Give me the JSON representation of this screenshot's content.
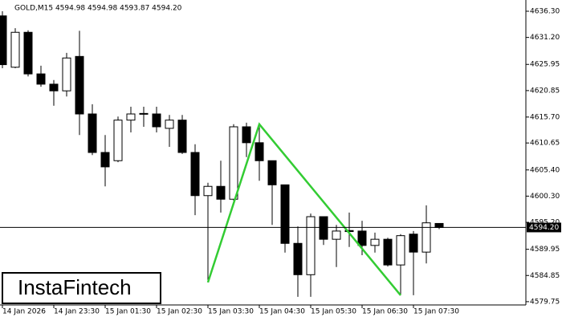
{
  "chart_data": {
    "type": "candlestick",
    "title": "GOLD,M15  4594.98 4594.98 4593.87 4594.20",
    "watermark": "InstaFintech",
    "categories": [
      "14 Jan 2026",
      null,
      null,
      null,
      "14 Jan 23:30",
      null,
      null,
      null,
      "15 Jan 01:30",
      null,
      null,
      null,
      "15 Jan 02:30",
      null,
      null,
      null,
      "15 Jan 03:30",
      null,
      null,
      null,
      "15 Jan 04:30",
      null,
      null,
      null,
      "15 Jan 05:30",
      null,
      null,
      null,
      "15 Jan 06:30",
      null,
      null,
      null,
      "15 Jan 07:30",
      null,
      null
    ],
    "open": [
      4635.4,
      4625.4,
      4632.2,
      4624.1,
      4622.1,
      4620.8,
      4627.5,
      4616.3,
      4608.8,
      4607.2,
      4615.1,
      4616.3,
      4616.3,
      4613.5,
      4615.1,
      4608.8,
      4600.4,
      4602.2,
      4599.7,
      4613.8,
      4610.7,
      4607.2,
      4602.5,
      4591.1,
      4585.0,
      4596.3,
      4591.9,
      4593.6,
      4593.5,
      4590.7,
      4591.9,
      4586.9,
      4592.9,
      4589.4,
      4594.98
    ],
    "high": [
      4636.3,
      4633.0,
      4632.6,
      4625.7,
      4622.9,
      4628.2,
      4632.5,
      4618.2,
      4612.2,
      4615.8,
      4617.7,
      4617.7,
      4617.7,
      4616.1,
      4616.1,
      4610.4,
      4602.9,
      4607.2,
      4614.3,
      4614.6,
      4614.3,
      4607.2,
      4602.5,
      4594.4,
      4596.9,
      4596.3,
      4594.7,
      4597.1,
      4595.5,
      4593.2,
      4592.2,
      4592.9,
      4593.5,
      4598.5,
      4594.98
    ],
    "low": [
      4625.2,
      4625.2,
      4623.6,
      4621.6,
      4617.9,
      4619.7,
      4612.2,
      4608.3,
      4602.2,
      4606.9,
      4612.7,
      4613.8,
      4612.7,
      4609.9,
      4608.5,
      4596.6,
      4583.5,
      4597.1,
      4599.4,
      4607.9,
      4603.3,
      4594.7,
      4589.3,
      4580.7,
      4580.7,
      4590.8,
      4586.5,
      4590.4,
      4588.8,
      4589.3,
      4586.6,
      4581.0,
      4581.0,
      4587.2,
      4593.87
    ],
    "close": [
      4625.9,
      4632.2,
      4624.1,
      4622.1,
      4620.8,
      4627.2,
      4616.3,
      4608.8,
      4606.0,
      4615.1,
      4616.3,
      4616.4,
      4613.8,
      4615.1,
      4608.8,
      4600.4,
      4602.2,
      4599.7,
      4613.8,
      4610.7,
      4607.2,
      4602.5,
      4591.1,
      4585.0,
      4596.3,
      4591.9,
      4593.5,
      4593.4,
      4590.7,
      4591.9,
      4586.9,
      4592.6,
      4589.4,
      4595.1,
      4594.2
    ],
    "up_color": "#ffffff",
    "down_color": "#000000",
    "ylim": [
      4579.11,
      4638.49
    ],
    "yticks": [
      {
        "value": 4636.3,
        "label": "4636.30"
      },
      {
        "value": 4631.2,
        "label": "4631.20"
      },
      {
        "value": 4625.95,
        "label": "4625.95"
      },
      {
        "value": 4620.85,
        "label": "4620.85"
      },
      {
        "value": 4615.7,
        "label": "4615.70"
      },
      {
        "value": 4610.65,
        "label": "4610.65"
      },
      {
        "value": 4605.4,
        "label": "4605.40"
      },
      {
        "value": 4600.3,
        "label": "4600.30"
      },
      {
        "value": 4595.2,
        "label": "4595.20"
      },
      {
        "value": 4589.95,
        "label": "4589.95"
      },
      {
        "value": 4584.85,
        "label": "4584.85"
      },
      {
        "value": 4579.75,
        "label": "4579.75"
      }
    ],
    "current_price": {
      "value": 4594.2,
      "label": "4594.20"
    },
    "pattern": {
      "color": "#33cc33",
      "points": [
        {
          "index": 16,
          "value": 4583.5
        },
        {
          "index": 20,
          "value": 4614.3
        },
        {
          "index": 31,
          "value": 4581.0
        }
      ]
    }
  }
}
